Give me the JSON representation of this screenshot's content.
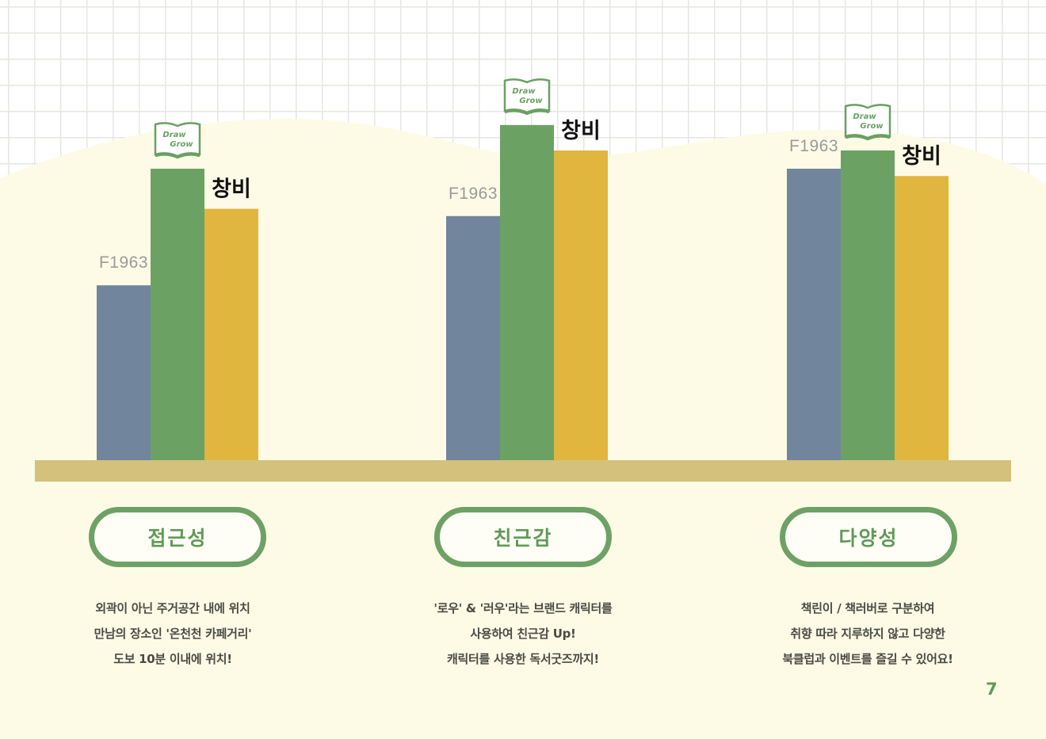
{
  "colors": {
    "background": "#fdfbe6",
    "grid_background": "#ffffff",
    "grid_line": "#e6e6e2",
    "shelf": "#d3c17c",
    "f1963_bar": "#71869d",
    "drawgrow_bar": "#6ba264",
    "changbi_bar": "#e0b63e",
    "accent_green": "#5f9a58"
  },
  "chart_data": {
    "type": "bar",
    "categories": [
      "접근성",
      "친근감",
      "다양성"
    ],
    "series": [
      {
        "name": "F1963",
        "values": [
          48,
          67,
          80
        ]
      },
      {
        "name": "Draw Grow",
        "values": [
          80,
          92,
          85
        ]
      },
      {
        "name": "창비",
        "values": [
          69,
          85,
          78
        ]
      }
    ],
    "ylim": [
      0,
      100
    ],
    "grid": false,
    "legend": "none"
  },
  "labels": {
    "f1963": "F1963",
    "changbi": "창비",
    "drawgrow_logo_top": "Draw",
    "drawgrow_logo_bottom": "Grow"
  },
  "sections": [
    {
      "title": "접근성",
      "lines": [
        "외곽이 아닌 주거공간 내에 위치",
        "만남의 장소인 '온천천 카페거리'",
        "도보 10분 이내에 위치!"
      ]
    },
    {
      "title": "친근감",
      "lines": [
        "'로우' & '러우'라는 브랜드 캐릭터를",
        "사용하여 친근감 Up!",
        "캐릭터를 사용한 독서굿즈까지!"
      ]
    },
    {
      "title": "다양성",
      "lines": [
        "책린이 / 책러버로 구분하여",
        "취향 따라 지루하지 않고 다양한",
        "북클럽과 이벤트를 즐길 수 있어요!"
      ]
    }
  ],
  "page_number": "7"
}
